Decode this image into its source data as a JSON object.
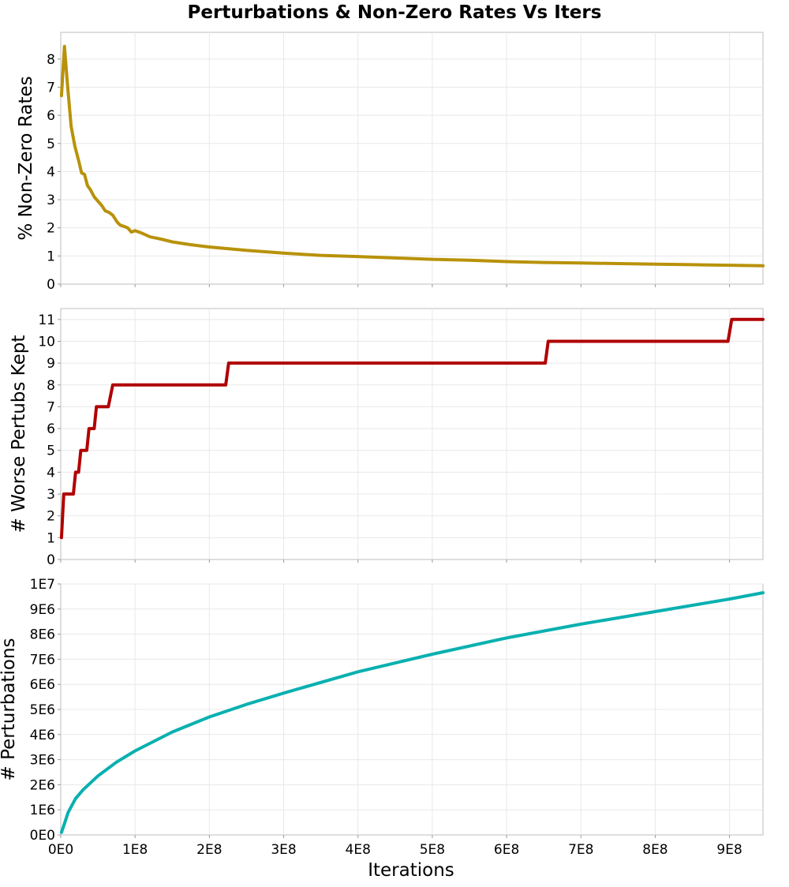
{
  "chart_data": {
    "title": "Perturbations & Non-Zero Rates Vs Iters",
    "xlabel": "Iterations",
    "type": "line",
    "x_ticks": [
      "0E0",
      "1E8",
      "2E8",
      "3E8",
      "4E8",
      "5E8",
      "6E8",
      "7E8",
      "8E8",
      "9E8"
    ],
    "xlim": [
      0,
      945000000
    ],
    "panels": [
      {
        "ylabel": "% Non-Zero Rates",
        "color": "#b8920a",
        "ylim": [
          0,
          8.95
        ],
        "y_ticks": [
          "0",
          "1",
          "2",
          "3",
          "4",
          "5",
          "6",
          "7",
          "8"
        ],
        "series": {
          "x": [
            1000000,
            5000000,
            9000000,
            14000000,
            19000000,
            24000000,
            28000000,
            32000000,
            36000000,
            40000000,
            45000000,
            50000000,
            55000000,
            60000000,
            65000000,
            70000000,
            76000000,
            80000000,
            85000000,
            90000000,
            95000000,
            100000000,
            110000000,
            120000000,
            135000000,
            150000000,
            175000000,
            200000000,
            250000000,
            300000000,
            350000000,
            400000000,
            450000000,
            500000000,
            550000000,
            600000000,
            650000000,
            700000000,
            750000000,
            800000000,
            850000000,
            900000000,
            945000000
          ],
          "values": [
            6.7,
            8.45,
            7.1,
            5.6,
            4.9,
            4.4,
            3.95,
            3.9,
            3.5,
            3.35,
            3.1,
            2.95,
            2.8,
            2.6,
            2.55,
            2.45,
            2.2,
            2.1,
            2.05,
            2.0,
            1.85,
            1.9,
            1.8,
            1.68,
            1.6,
            1.5,
            1.4,
            1.32,
            1.2,
            1.1,
            1.02,
            0.98,
            0.93,
            0.88,
            0.85,
            0.8,
            0.77,
            0.75,
            0.73,
            0.71,
            0.69,
            0.67,
            0.65
          ]
        }
      },
      {
        "ylabel": "# Worse Pertubs Kept",
        "color": "#b00000",
        "ylim": [
          0,
          11.5
        ],
        "y_ticks": [
          "0",
          "1",
          "2",
          "3",
          "4",
          "5",
          "6",
          "7",
          "8",
          "9",
          "10",
          "11"
        ],
        "series": {
          "x": [
            1000000,
            5000000,
            17000000,
            21000000,
            27000000,
            36000000,
            44000000,
            53000000,
            63000000,
            71000000,
            222000000,
            227000000,
            652000000,
            657000000,
            898000000,
            903000000,
            945000000
          ],
          "values": [
            1,
            3,
            3,
            4,
            5,
            5,
            6,
            7,
            7,
            8,
            8,
            9,
            9,
            10,
            10,
            11,
            11
          ],
          "steps": [
            [
              1000000,
              1
            ],
            [
              4000000,
              3
            ],
            [
              17000000,
              3
            ],
            [
              20000000,
              4
            ],
            [
              24000000,
              4
            ],
            [
              27000000,
              5
            ],
            [
              35000000,
              5
            ],
            [
              38000000,
              6
            ],
            [
              45000000,
              6
            ],
            [
              48000000,
              7
            ],
            [
              64000000,
              7
            ],
            [
              70000000,
              8
            ],
            [
              222000000,
              8
            ],
            [
              226000000,
              9
            ],
            [
              652000000,
              9
            ],
            [
              656000000,
              10
            ],
            [
              898000000,
              10
            ],
            [
              903000000,
              11
            ],
            [
              945000000,
              11
            ]
          ]
        }
      },
      {
        "ylabel": "# Perturbations",
        "color": "#0ab0b0",
        "ylim": [
          0,
          10000000
        ],
        "y_ticks": [
          "0E0",
          "1E6",
          "2E6",
          "3E6",
          "4E6",
          "5E6",
          "6E6",
          "7E6",
          "8E6",
          "9E6",
          "1E7"
        ],
        "series": {
          "x": [
            1000000,
            5000000,
            10000000,
            20000000,
            30000000,
            50000000,
            75000000,
            100000000,
            150000000,
            200000000,
            250000000,
            300000000,
            400000000,
            500000000,
            600000000,
            700000000,
            800000000,
            900000000,
            945000000
          ],
          "values": [
            100000,
            450000,
            900000,
            1450000,
            1800000,
            2350000,
            2900000,
            3350000,
            4100000,
            4700000,
            5200000,
            5650000,
            6500000,
            7200000,
            7850000,
            8400000,
            8900000,
            9400000,
            9650000
          ]
        }
      }
    ]
  }
}
